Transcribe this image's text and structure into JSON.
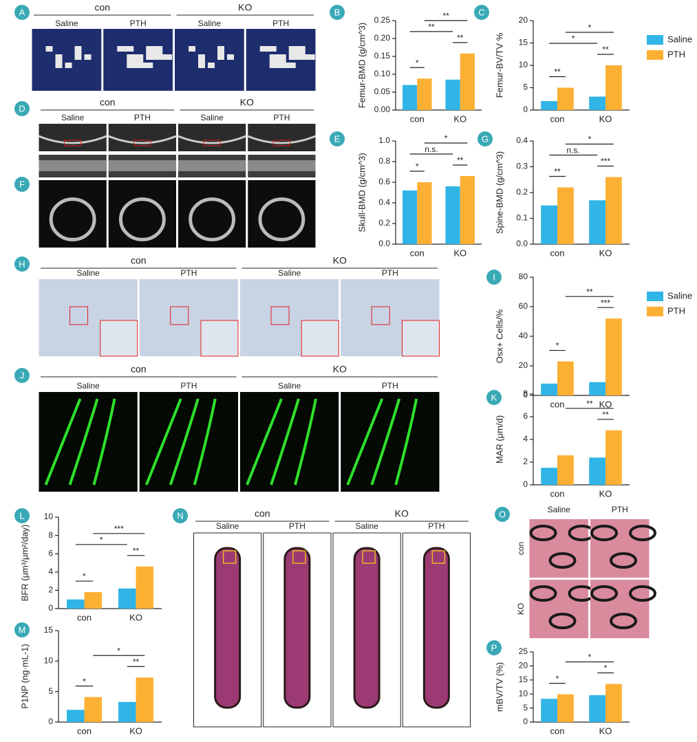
{
  "chart_data": [
    {
      "type": "bar",
      "letter": "B",
      "ylabel": "Femur-BMD (g/cm^3)",
      "categories": [
        "con",
        "KO"
      ],
      "series": [
        {
          "name": "Saline",
          "color": "#31b5e6",
          "values": [
            0.07,
            0.085
          ]
        },
        {
          "name": "PTH",
          "color": "#fbb034",
          "values": [
            0.088,
            0.158
          ]
        }
      ],
      "ylim": [
        0,
        0.25
      ],
      "yticks": [
        {
          "value": 0,
          "label": "0.00"
        },
        {
          "value": 0.05,
          "label": "0.05"
        },
        {
          "value": 0.1,
          "label": "0.10"
        },
        {
          "value": 0.15,
          "label": "0.15"
        },
        {
          "value": 0.2,
          "label": "0.20"
        },
        {
          "value": 0.25,
          "label": "0.25"
        }
      ],
      "annotations": [
        "*",
        "**",
        "**",
        "**"
      ]
    },
    {
      "type": "bar",
      "letter": "C",
      "ylabel": "Femur-BV/TV %",
      "categories": [
        "con",
        "KO"
      ],
      "series": [
        {
          "name": "Saline",
          "color": "#31b5e6",
          "values": [
            2,
            3
          ]
        },
        {
          "name": "PTH",
          "color": "#fbb034",
          "values": [
            5,
            10
          ]
        }
      ],
      "ylim": [
        0,
        20
      ],
      "yticks": [
        0,
        5,
        10,
        15,
        20
      ],
      "legend": true,
      "annotations": [
        "**",
        "**",
        "*",
        "*"
      ]
    },
    {
      "type": "bar",
      "letter": "E",
      "ylabel": "Skull-BMD (g/cm^3)",
      "categories": [
        "con",
        "KO"
      ],
      "series": [
        {
          "name": "Saline",
          "color": "#31b5e6",
          "values": [
            0.52,
            0.56
          ]
        },
        {
          "name": "PTH",
          "color": "#fbb034",
          "values": [
            0.6,
            0.66
          ]
        }
      ],
      "ylim": [
        0,
        1.0
      ],
      "yticks": [
        {
          "value": 0,
          "label": "0.0"
        },
        0.2,
        0.4,
        0.6,
        0.8,
        {
          "value": 1.0,
          "label": "1.0"
        }
      ],
      "annotations": [
        "*",
        "**",
        "n.s.",
        "*"
      ]
    },
    {
      "type": "bar",
      "letter": "G",
      "ylabel": "Spine-BMD (g/cm^3)",
      "categories": [
        "con",
        "KO"
      ],
      "series": [
        {
          "name": "Saline",
          "color": "#31b5e6",
          "values": [
            0.15,
            0.17
          ]
        },
        {
          "name": "PTH",
          "color": "#fbb034",
          "values": [
            0.22,
            0.26
          ]
        }
      ],
      "ylim": [
        0,
        0.4
      ],
      "yticks": [
        {
          "value": 0,
          "label": "0.0"
        },
        0.1,
        0.2,
        0.3,
        0.4
      ],
      "annotations": [
        "**",
        "***",
        "n.s.",
        "*"
      ]
    },
    {
      "type": "bar",
      "letter": "I",
      "ylabel": "Osx+ Cells/%",
      "categories": [
        "con",
        "KO"
      ],
      "series": [
        {
          "name": "Saline",
          "color": "#31b5e6",
          "values": [
            8,
            9
          ]
        },
        {
          "name": "PTH",
          "color": "#fbb034",
          "values": [
            23,
            52
          ]
        }
      ],
      "ylim": [
        0,
        80
      ],
      "yticks": [
        0,
        20,
        40,
        60,
        80
      ],
      "legend": true,
      "annotations": [
        "*",
        "***",
        "**"
      ]
    },
    {
      "type": "bar",
      "letter": "K",
      "ylabel": "MAR (μm/d)",
      "categories": [
        "con",
        "KO"
      ],
      "series": [
        {
          "name": "Saline",
          "color": "#31b5e6",
          "values": [
            1.5,
            2.4
          ]
        },
        {
          "name": "PTH",
          "color": "#fbb034",
          "values": [
            2.6,
            4.8
          ]
        }
      ],
      "ylim": [
        0,
        8
      ],
      "yticks": [
        0,
        2,
        4,
        6,
        8
      ],
      "annotations": [
        "**",
        "**"
      ]
    },
    {
      "type": "bar",
      "letter": "L",
      "ylabel": "BFR (μm³/μm²/day)",
      "categories": [
        "con",
        "KO"
      ],
      "series": [
        {
          "name": "Saline",
          "color": "#31b5e6",
          "values": [
            1.0,
            2.2
          ]
        },
        {
          "name": "PTH",
          "color": "#fbb034",
          "values": [
            1.8,
            4.6
          ]
        }
      ],
      "ylim": [
        0,
        10
      ],
      "yticks": [
        0,
        2,
        4,
        6,
        8,
        10
      ],
      "annotations": [
        "*",
        "**",
        "*",
        "***"
      ]
    },
    {
      "type": "bar",
      "letter": "M",
      "ylabel": "P1NP (ng·mL-1)",
      "categories": [
        "con",
        "KO"
      ],
      "series": [
        {
          "name": "Saline",
          "color": "#31b5e6",
          "values": [
            2,
            3.3
          ]
        },
        {
          "name": "PTH",
          "color": "#fbb034",
          "values": [
            4.1,
            7.3
          ]
        }
      ],
      "ylim": [
        0,
        15
      ],
      "yticks": [
        0,
        5,
        10,
        15
      ],
      "annotations": [
        "*",
        "**",
        "*"
      ]
    },
    {
      "type": "bar",
      "letter": "P",
      "ylabel": "mBV/TV (%)",
      "categories": [
        "con",
        "KO"
      ],
      "series": [
        {
          "name": "Saline",
          "color": "#31b5e6",
          "values": [
            8.3,
            9.6
          ]
        },
        {
          "name": "PTH",
          "color": "#fbb034",
          "values": [
            9.9,
            13.6
          ]
        }
      ],
      "ylim": [
        0,
        25
      ],
      "yticks": [
        0,
        5,
        10,
        15,
        20,
        25
      ],
      "annotations": [
        "*",
        "*",
        "*"
      ]
    }
  ],
  "image_panels": [
    {
      "letter": "A",
      "groups": [
        "con",
        "KO"
      ],
      "columns": [
        "Saline",
        "PTH",
        "Saline",
        "PTH"
      ]
    },
    {
      "letter": "D",
      "groups": [
        "con",
        "KO"
      ],
      "columns": [
        "Saline",
        "PTH",
        "Saline",
        "PTH"
      ]
    },
    {
      "letter": "F"
    },
    {
      "letter": "H",
      "groups": [
        "con",
        "KO"
      ],
      "columns": [
        "Saline",
        "PTH",
        "Saline",
        "PTH"
      ]
    },
    {
      "letter": "J",
      "groups": [
        "con",
        "KO"
      ],
      "columns": [
        "Saline",
        "PTH",
        "Saline",
        "PTH"
      ]
    },
    {
      "letter": "N",
      "groups": [
        "con",
        "KO"
      ],
      "columns": [
        "Saline",
        "PTH",
        "Saline",
        "PTH"
      ]
    },
    {
      "letter": "O",
      "columns": [
        "Saline",
        "PTH"
      ],
      "rows": [
        "con",
        "KO"
      ]
    }
  ]
}
